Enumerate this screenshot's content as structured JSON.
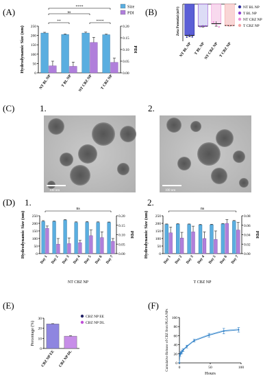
{
  "panel_labels": {
    "A": "(A)",
    "B": "(B)",
    "C": "(C)",
    "D": "(D)",
    "E": "(E)",
    "F": "(F)"
  },
  "sub_labels": {
    "c1": "1.",
    "c2": "2.",
    "d1": "1.",
    "d2": "2."
  },
  "micrographs": [
    {
      "scale_bar": "100 nm"
    },
    {
      "scale_bar": "100 nm"
    }
  ],
  "colors": {
    "size": "#5aaee0",
    "pdi": "#b07fdb",
    "zeta_bar": "#5b5fd6",
    "tbl": "#8b3fd1",
    "ntcbz": "#ee8bd5",
    "tcbz": "#f4a3a3",
    "ee": "#8e86e0",
    "dl": "#c78ee8",
    "release": "#2a7cc4"
  },
  "chart_data": [
    {
      "panel": "A",
      "type": "bar",
      "categories": [
        "NT BL NP",
        "T BL NP",
        "NT CBZ NP",
        "T CBZ NP"
      ],
      "ylabel": "Hydrodynamic Size (nm)",
      "y2label": "PDI",
      "ylim": [
        0,
        250
      ],
      "y2lim": [
        0,
        0.2
      ],
      "yticks": [
        0,
        50,
        100,
        150,
        200,
        250
      ],
      "y2ticks": [
        0,
        0.05,
        0.1,
        0.15,
        0.2
      ],
      "y2tick_labels": [
        "0.00",
        "0.05",
        "0.10",
        "0.15",
        "0.20"
      ],
      "legend": [
        "Size",
        "PDI"
      ],
      "legend_position": "top-right",
      "series": [
        {
          "name": "Size",
          "axis": "left",
          "values": [
            213,
            205,
            213,
            204
          ],
          "errors": [
            4,
            3,
            5,
            3
          ]
        },
        {
          "name": "PDI",
          "axis": "right",
          "values": [
            0.03,
            0.028,
            0.13,
            0.045
          ],
          "errors": [
            0.02,
            0.018,
            0.022,
            0.018
          ]
        }
      ],
      "significance": [
        {
          "from": 0,
          "to": 1,
          "label": "**"
        },
        {
          "from": 2,
          "to": 3,
          "label": "****"
        },
        {
          "from": 0,
          "to": 2,
          "label": "ns"
        },
        {
          "from": 0,
          "to": 3,
          "label": "****"
        }
      ]
    },
    {
      "panel": "B",
      "type": "bar",
      "categories": [
        "NT BL NP",
        "T BL NP",
        "NT CBZ NP",
        "T CBZ NP"
      ],
      "ylabel": "Zeta Potential (mV)",
      "ylim": [
        -35,
        0
      ],
      "values": [
        -29.5,
        -20.8,
        -18.5,
        -20.2
      ],
      "errors": [
        1.2,
        0.8,
        2.3,
        0.4
      ],
      "legend": [
        "NT BL NP",
        "T BL NP",
        "NT CBZ NP",
        "T CBZ NP"
      ],
      "legend_position": "right"
    },
    {
      "panel": "D1",
      "type": "bar",
      "categories": [
        "Day 1",
        "Day 2",
        "Day 3",
        "Day 4",
        "Day 5",
        "Day 6",
        "Day 7"
      ],
      "xlabel": "NT CBZ NP",
      "ylabel": "Hydrodynamic Size (nm)",
      "y2label": "PDI",
      "ylim": [
        0,
        250
      ],
      "y2lim": [
        0,
        0.2
      ],
      "yticks": [
        0,
        50,
        100,
        150,
        200,
        250
      ],
      "y2ticks": [
        0,
        0.05,
        0.1,
        0.15,
        0.2
      ],
      "y2tick_labels": [
        "0.00",
        "0.05",
        "0.10",
        "0.15",
        "0.20"
      ],
      "series": [
        {
          "name": "Size",
          "axis": "left",
          "values": [
            213,
            212,
            221,
            206,
            207,
            206,
            206
          ],
          "errors": [
            5,
            3,
            4,
            4,
            5,
            4,
            3
          ]
        },
        {
          "name": "PDI",
          "axis": "right",
          "values": [
            0.134,
            0.05,
            0.053,
            0.058,
            0.095,
            0.085,
            0.065
          ],
          "errors": [
            0.012,
            0.03,
            0.03,
            0.012,
            0.03,
            0.03,
            0.015
          ]
        }
      ],
      "significance": [
        {
          "from": 0,
          "to": 6,
          "label": "ns"
        }
      ]
    },
    {
      "panel": "D2",
      "type": "bar",
      "categories": [
        "Day 1",
        "Day 2",
        "Day 3",
        "Day 4",
        "Day 5",
        "Day 6",
        "Day 7"
      ],
      "xlabel": "T CBZ NP",
      "ylabel": "Hydrodynamic Size (nm)",
      "y2label": "PDI",
      "ylim": [
        0,
        250
      ],
      "y2lim": [
        0,
        0.08
      ],
      "yticks": [
        0,
        50,
        100,
        150,
        200,
        250
      ],
      "y2ticks": [
        0,
        0.02,
        0.04,
        0.06,
        0.08
      ],
      "y2tick_labels": [
        "0.00",
        "0.02",
        "0.04",
        "0.06",
        "0.08"
      ],
      "series": [
        {
          "name": "Size",
          "axis": "left",
          "values": [
            193,
            195,
            193,
            190,
            191,
            196,
            215
          ],
          "errors": [
            3,
            3,
            3,
            3,
            3,
            3,
            4
          ]
        },
        {
          "name": "PDI",
          "axis": "right",
          "values": [
            0.044,
            0.033,
            0.046,
            0.032,
            0.03,
            0.064,
            0.05
          ],
          "errors": [
            0.012,
            0.012,
            0.012,
            0.014,
            0.018,
            0.008,
            0.016
          ]
        }
      ],
      "significance": [
        {
          "from": 0,
          "to": 6,
          "label": "ns"
        }
      ]
    },
    {
      "panel": "E",
      "type": "bar",
      "categories": [
        "CBZ NP EE",
        "CBZ NP DL"
      ],
      "ylabel": "Percentage (%)",
      "ylim": [
        0,
        30
      ],
      "yticks": [
        0,
        10,
        20,
        30
      ],
      "values": [
        24.3,
        12.2
      ],
      "errors": [
        0.3,
        0.4
      ],
      "legend": [
        "CBZ NP EE",
        "CBZ NP DL"
      ],
      "legend_position": "top-right"
    },
    {
      "panel": "F",
      "type": "line",
      "xlabel": "Hours",
      "ylabel": "Cumulative Release of CBZ from PLGA NPs",
      "xlim": [
        0,
        100
      ],
      "ylim": [
        0,
        100
      ],
      "xticks": [
        0,
        50,
        100
      ],
      "yticks": [
        0,
        20,
        40,
        60,
        80,
        100
      ],
      "x": [
        0,
        1,
        2,
        4,
        6,
        12,
        24,
        48,
        72,
        96
      ],
      "y": [
        0,
        18,
        22,
        24,
        28,
        36,
        49,
        61,
        70,
        73
      ],
      "errors": [
        0,
        3,
        3,
        4,
        3,
        3,
        3,
        4,
        6,
        5
      ]
    }
  ]
}
